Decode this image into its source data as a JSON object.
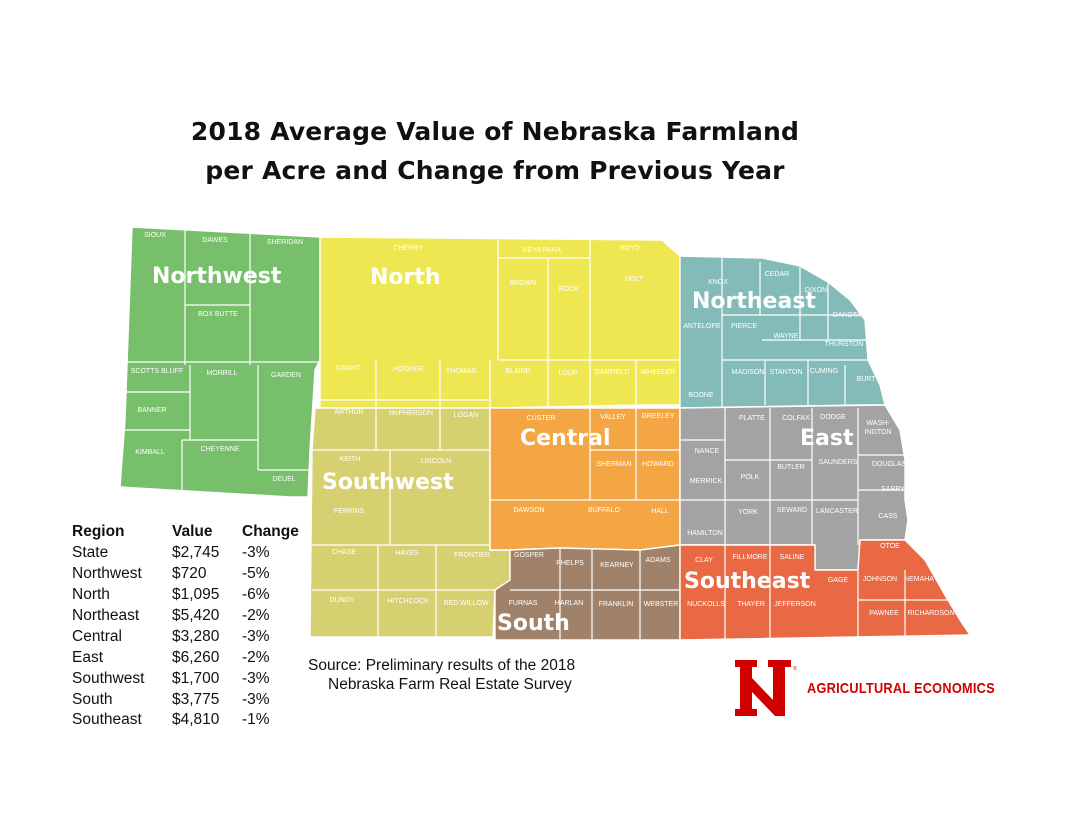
{
  "title": {
    "line1": "2018 Average Value of Nebraska Farmland",
    "line2": "per Acre and Change from Previous Year"
  },
  "colors": {
    "northwest": "#77bf6a",
    "north": "#eee752",
    "northeast": "#83bbb9",
    "central": "#f3a643",
    "east": "#a3a3a3",
    "southwest": "#d7d071",
    "south": "#a0826a",
    "southeast": "#e86943",
    "brand_red": "#d00000"
  },
  "regions": {
    "northwest": "Northwest",
    "north": "North",
    "northeast": "Northeast",
    "central": "Central",
    "east": "East",
    "southwest": "Southwest",
    "south": "South",
    "southeast": "Southeast"
  },
  "counties": {
    "sioux": "SIOUX",
    "dawes": "DAWES",
    "sheridan": "SHERIDAN",
    "box_butte": "BOX BUTTE",
    "scotts_bluff": "SCOTTS BLUFF",
    "morrill": "MORRILL",
    "garden": "GARDEN",
    "banner": "BANNER",
    "kimball": "KIMBALL",
    "cheyenne": "CHEYENNE",
    "deuel": "DEUEL",
    "cherry": "CHERRY",
    "keya_paha": "KEYA PAHA",
    "boyd": "BOYD",
    "brown": "BROWN",
    "rock": "ROCK",
    "holt": "HOLT",
    "grant": "GRANT",
    "hooker": "HOOKER",
    "thomas": "THOMAS",
    "blaine": "BLAINE",
    "loup": "LOUP",
    "garfield": "GARFIELD",
    "wheeler": "WHEELER",
    "arthur": "ARTHUR",
    "mcpherson": "McPHERSON",
    "logan": "LOGAN",
    "knox": "KNOX",
    "cedar": "CEDAR",
    "dixon": "DIXON",
    "dakota": "DAKOTA",
    "antelope": "ANTELOPE",
    "pierce": "PIERCE",
    "wayne": "WAYNE",
    "thurston": "THURSTON",
    "madison": "MADISON",
    "stanton": "STANTON",
    "cuming": "CUMING",
    "burt": "BURT",
    "boone": "BOONE",
    "custer": "CUSTER",
    "valley": "VALLEY",
    "greeley": "GREELEY",
    "sherman": "SHERMAN",
    "howard": "HOWARD",
    "dawson": "DAWSON",
    "buffalo": "BUFFALO",
    "hall": "HALL",
    "platte": "PLATTE",
    "colfax": "COLFAX",
    "dodge": "DODGE",
    "washington": "WASH-\nINGTON",
    "washington_line1": "WASH-",
    "washington_line2": "INGTON",
    "nance": "NANCE",
    "merrick": "MERRICK",
    "polk": "POLK",
    "butler": "BUTLER",
    "saunders": "SAUNDERS",
    "douglas": "DOUGLAS",
    "sarpy": "SARPY",
    "york": "YORK",
    "seward": "SEWARD",
    "lancaster": "LANCASTER",
    "cass": "CASS",
    "hamilton": "HAMILTON",
    "keith": "KEITH",
    "lincoln": "LINCOLN",
    "perkins": "PERKINS",
    "chase": "CHASE",
    "hayes": "HAYES",
    "frontier": "FRONTIER",
    "dundy": "DUNDY",
    "hitchcock": "HITCHCOCK",
    "red_willow": "RED WILLOW",
    "gosper": "GOSPER",
    "phelps": "PHELPS",
    "kearney": "KEARNEY",
    "adams": "ADAMS",
    "furnas": "FURNAS",
    "harlan": "HARLAN",
    "franklin": "FRANKLIN",
    "webster": "WEBSTER",
    "clay": "CLAY",
    "fillmore": "FILLMORE",
    "saline": "SALINE",
    "otoe": "OTOE",
    "gage": "GAGE",
    "johnson": "JOHNSON",
    "nemaha": "NEMAHA",
    "nuckolls": "NUCKOLLS",
    "thayer": "THAYER",
    "jefferson": "JEFFERSON",
    "pawnee": "PAWNEE",
    "richardson": "RICHARDSON"
  },
  "legend": {
    "headers": {
      "region": "Region",
      "value": "Value",
      "change": "Change"
    },
    "rows": [
      {
        "region": "State",
        "value": "$2,745",
        "change": "-3%"
      },
      {
        "region": "Northwest",
        "value": "$720",
        "change": "-5%"
      },
      {
        "region": "North",
        "value": "$1,095",
        "change": "-6%"
      },
      {
        "region": "Northeast",
        "value": "$5,420",
        "change": "-2%"
      },
      {
        "region": "Central",
        "value": "$3,280",
        "change": "-3%"
      },
      {
        "region": "East",
        "value": "$6,260",
        "change": "-2%"
      },
      {
        "region": "Southwest",
        "value": "$1,700",
        "change": "-3%"
      },
      {
        "region": "South",
        "value": "$3,775",
        "change": "-3%"
      },
      {
        "region": "Southeast",
        "value": "$4,810",
        "change": "-1%"
      }
    ]
  },
  "source": {
    "line1": "Source: Preliminary results of the 2018",
    "line2": "Nebraska Farm Real Estate Survey"
  },
  "logo": {
    "letter": "N",
    "text": "AGRICULTURAL ECONOMICS",
    "icon": "university-n-logo"
  }
}
